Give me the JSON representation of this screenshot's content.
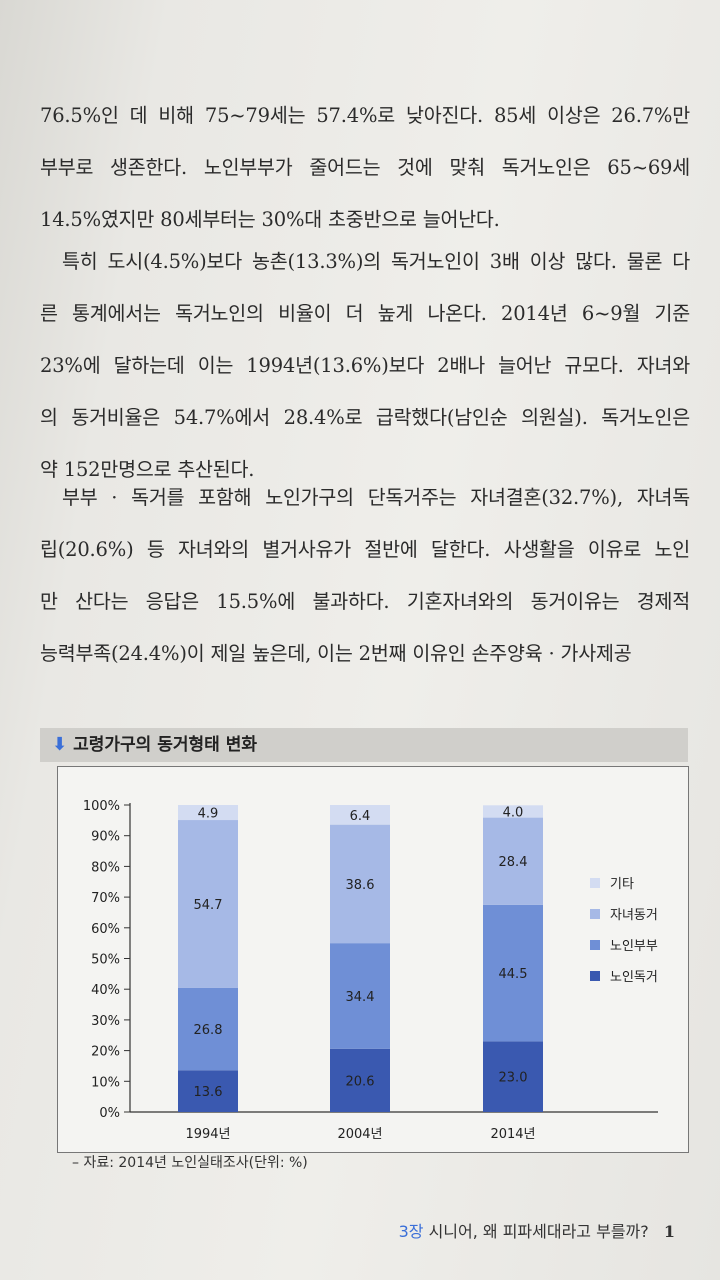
{
  "body": {
    "paragraphs": [
      {
        "lines": [
          "76.5%인 데 비해 75~79세는 57.4%로 낮아진다. 85세 이상은 26.7%만",
          "부부로 생존한다. 노인부부가 줄어드는 것에 맞춰 독거노인은 65~69세",
          "14.5%였지만 80세부터는 30%대 초중반으로 늘어난다."
        ]
      },
      {
        "lines": [
          "특히 도시(4.5%)보다 농촌(13.3%)의 독거노인이 3배 이상 많다. 물론 다",
          "른 통계에서는 독거노인의 비율이 더 높게 나온다. 2014년 6~9월 기준",
          "23%에 달하는데 이는 1994년(13.6%)보다 2배나 늘어난 규모다. 자녀와",
          "의 동거비율은 54.7%에서 28.4%로 급락했다(남인순 의원실). 독거노인은",
          "약 152만명으로 추산된다."
        ]
      },
      {
        "lines": [
          "부부 · 독거를 포함해 노인가구의 단독거주는 자녀결혼(32.7%), 자녀독",
          "립(20.6%) 등 자녀와의 별거사유가 절반에 달한다. 사생활을 이유로 노인",
          "만 산다는 응답은 15.5%에 불과하다. 기혼자녀와의 동거이유는 경제적",
          "능력부족(24.4%)이 제일 높은데, 이는 2번째 이유인 손주양육 · 가사제공"
        ]
      }
    ]
  },
  "chart_title": "고령가구의 동거형태 변화",
  "chart_data": {
    "type": "bar",
    "stacked": true,
    "categories": [
      "1994년",
      "2004년",
      "2014년"
    ],
    "series": [
      {
        "name": "노인독거",
        "values": [
          13.6,
          20.6,
          23.0
        ],
        "color": "#3a59b0"
      },
      {
        "name": "노인부부",
        "values": [
          26.8,
          34.4,
          44.5
        ],
        "color": "#6f8fd6"
      },
      {
        "name": "자녀동거",
        "values": [
          54.7,
          38.6,
          28.4
        ],
        "color": "#a6b9e6"
      },
      {
        "name": "기타",
        "values": [
          4.9,
          6.4,
          4.0
        ],
        "color": "#d3dcf2"
      }
    ],
    "data_labels": [
      [
        "13.6",
        "20.6",
        "23.0"
      ],
      [
        "26.8",
        "34.4",
        "44.5"
      ],
      [
        "54.7",
        "38.6",
        "28.4"
      ],
      [
        "4.9",
        "6.4",
        "4.0"
      ]
    ],
    "yticks": [
      "0%",
      "10%",
      "20%",
      "30%",
      "40%",
      "50%",
      "60%",
      "70%",
      "80%",
      "90%",
      "100%"
    ],
    "ylim": [
      0,
      100
    ],
    "legend_position": "right"
  },
  "source_note": "– 자료: 2014년 노인실태조사(단위: %)",
  "footer": {
    "chapter": "3장",
    "title": "시니어, 왜 피파세대라고 부를까?",
    "page": "1"
  }
}
